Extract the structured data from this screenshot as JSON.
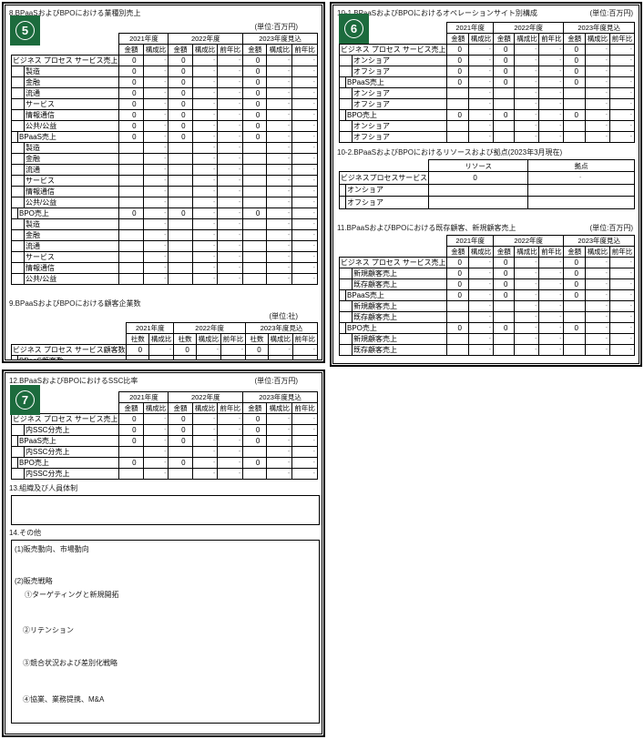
{
  "units": {
    "million_yen": "(単位:百万円)",
    "companies": "(単位:社)"
  },
  "headers": {
    "y2021": "2021年度",
    "y2022": "2022年度",
    "y2023": "2023年度見込",
    "amount": "金額",
    "share": "構成比",
    "yoy": "前年比",
    "count": "社数"
  },
  "badges": {
    "panel5": "5",
    "panel6": "6",
    "pan7": "7",
    "panel7": "7"
  },
  "panel5": {
    "section8": {
      "title": "8.BPaaSおよびBPOにおける業種別売上",
      "rows": [
        {
          "label": "ビジネス プロセス サービス売上",
          "indent": 0,
          "values": [
            "0",
            "-",
            "0",
            "-",
            "-",
            "0",
            "-",
            "-"
          ]
        },
        {
          "label": "製造",
          "indent": 2,
          "values": [
            "0",
            "-",
            "0",
            "-",
            "-",
            "0",
            "-",
            "-"
          ]
        },
        {
          "label": "金融",
          "indent": 2,
          "values": [
            "0",
            "-",
            "0",
            "-",
            "-",
            "0",
            "-",
            "-"
          ]
        },
        {
          "label": "流通",
          "indent": 2,
          "values": [
            "0",
            "-",
            "0",
            "-",
            "-",
            "0",
            "-",
            "-"
          ]
        },
        {
          "label": "サービス",
          "indent": 2,
          "values": [
            "0",
            "-",
            "0",
            "-",
            "-",
            "0",
            "-",
            "-"
          ]
        },
        {
          "label": "情報通信",
          "indent": 2,
          "values": [
            "0",
            "-",
            "0",
            "-",
            "-",
            "0",
            "-",
            "-"
          ]
        },
        {
          "label": "公共/公益",
          "indent": 2,
          "values": [
            "0",
            "-",
            "0",
            "-",
            "-",
            "0",
            "-",
            "-"
          ]
        },
        {
          "label": "BPaaS売上",
          "indent": 1,
          "values": [
            "0",
            "-",
            "0",
            "-",
            "-",
            "0",
            "-",
            "-"
          ]
        },
        {
          "label": "製造",
          "indent": 2,
          "values": [
            "",
            "-",
            "",
            "-",
            "-",
            "",
            "-",
            "-"
          ]
        },
        {
          "label": "金融",
          "indent": 2,
          "values": [
            "",
            "-",
            "",
            "-",
            "-",
            "",
            "-",
            "-"
          ]
        },
        {
          "label": "流通",
          "indent": 2,
          "values": [
            "",
            "-",
            "",
            "-",
            "-",
            "",
            "-",
            "-"
          ]
        },
        {
          "label": "サービス",
          "indent": 2,
          "values": [
            "",
            "-",
            "",
            "-",
            "-",
            "",
            "-",
            "-"
          ]
        },
        {
          "label": "情報通信",
          "indent": 2,
          "values": [
            "",
            "-",
            "",
            "-",
            "-",
            "",
            "-",
            "-"
          ]
        },
        {
          "label": "公共/公益",
          "indent": 2,
          "values": [
            "",
            "-",
            "",
            "-",
            "-",
            "",
            "-",
            "-"
          ]
        },
        {
          "label": "BPO売上",
          "indent": 1,
          "values": [
            "0",
            "-",
            "0",
            "-",
            "-",
            "0",
            "-",
            "-"
          ]
        },
        {
          "label": "製造",
          "indent": 2,
          "values": [
            "",
            "-",
            "",
            "-",
            "-",
            "",
            "-",
            "-"
          ]
        },
        {
          "label": "金融",
          "indent": 2,
          "values": [
            "",
            "-",
            "",
            "-",
            "-",
            "",
            "-",
            "-"
          ]
        },
        {
          "label": "流通",
          "indent": 2,
          "values": [
            "",
            "-",
            "",
            "-",
            "-",
            "",
            "-",
            "-"
          ]
        },
        {
          "label": "サービス",
          "indent": 2,
          "values": [
            "",
            "-",
            "",
            "-",
            "-",
            "",
            "-",
            "-"
          ]
        },
        {
          "label": "情報通信",
          "indent": 2,
          "values": [
            "",
            "-",
            "",
            "-",
            "-",
            "",
            "-",
            "-"
          ]
        },
        {
          "label": "公共/公益",
          "indent": 2,
          "values": [
            "",
            "-",
            "",
            "-",
            "-",
            "",
            "-",
            "-"
          ]
        }
      ]
    },
    "section9": {
      "title": "9.BPaaSおよびBPOにおける顧客企業数",
      "rows": [
        {
          "label": "ビジネス プロセス サービス顧客数",
          "indent": 0,
          "values": [
            "0",
            "-",
            "0",
            "-",
            "-",
            "0",
            "-",
            "-"
          ]
        },
        {
          "label": "BPaaS顧客数",
          "indent": 1,
          "values": [
            "",
            "-",
            "",
            "-",
            "-",
            "",
            "-",
            "-"
          ]
        },
        {
          "label": "BPO顧客数",
          "indent": 1,
          "values": [
            "",
            "-",
            "",
            "-",
            "-",
            "",
            "-",
            "-"
          ]
        }
      ]
    }
  },
  "panel6": {
    "section10_1": {
      "title": "10-1.BPaaSおよびBPOにおけるオペレーションサイト別構成",
      "rows": [
        {
          "label": "ビジネス プロセス サービス売上",
          "indent": 0,
          "values": [
            "0",
            "-",
            "0",
            "-",
            "-",
            "0",
            "-",
            "-"
          ]
        },
        {
          "label": "オンショア",
          "indent": 2,
          "values": [
            "0",
            "-",
            "0",
            "-",
            "-",
            "0",
            "-",
            "-"
          ]
        },
        {
          "label": "オフショア",
          "indent": 2,
          "values": [
            "0",
            "-",
            "0",
            "-",
            "-",
            "0",
            "-",
            "-"
          ]
        },
        {
          "label": "BPaaS売上",
          "indent": 1,
          "values": [
            "0",
            "-",
            "0",
            "-",
            "-",
            "0",
            "-",
            "-"
          ]
        },
        {
          "label": "オンショア",
          "indent": 2,
          "values": [
            "",
            "-",
            "",
            "-",
            "-",
            "",
            "-",
            "-"
          ]
        },
        {
          "label": "オフショア",
          "indent": 2,
          "values": [
            "",
            "-",
            "",
            "-",
            "-",
            "",
            "-",
            "-"
          ]
        },
        {
          "label": "BPO売上",
          "indent": 1,
          "values": [
            "0",
            "-",
            "0",
            "-",
            "-",
            "0",
            "-",
            "-"
          ]
        },
        {
          "label": "オンショア",
          "indent": 2,
          "values": [
            "",
            "-",
            "",
            "-",
            "-",
            "",
            "-",
            "-"
          ]
        },
        {
          "label": "オフショア",
          "indent": 2,
          "values": [
            "",
            "-",
            "",
            "-",
            "-",
            "",
            "-",
            "-"
          ]
        }
      ]
    },
    "section10_2": {
      "title": "10-2.BPaaSおよびBPOにおけるリソースおよび拠点(2023年3月現在)",
      "col_resource": "リソース",
      "col_site": "拠点",
      "rows": [
        {
          "label": "ビジネスプロセスサービス",
          "indent": 0,
          "values": [
            "0",
            "-"
          ]
        },
        {
          "label": "オンショア",
          "indent": 1,
          "values": [
            "",
            ""
          ]
        },
        {
          "label": "オフショア",
          "indent": 1,
          "values": [
            "",
            ""
          ]
        }
      ]
    },
    "section11": {
      "title": "11.BPaaSおよびBPOにおける既存顧客、新規顧客売上",
      "rows": [
        {
          "label": "ビジネス プロセス サービス売上",
          "indent": 0,
          "values": [
            "0",
            "-",
            "0",
            "-",
            "-",
            "0",
            "-",
            "-"
          ]
        },
        {
          "label": "新規顧客売上",
          "indent": 2,
          "values": [
            "0",
            "-",
            "0",
            "-",
            "-",
            "0",
            "-",
            "-"
          ]
        },
        {
          "label": "既存顧客売上",
          "indent": 2,
          "values": [
            "0",
            "-",
            "0",
            "-",
            "-",
            "0",
            "-",
            "-"
          ]
        },
        {
          "label": "BPaaS売上",
          "indent": 1,
          "values": [
            "0",
            "-",
            "0",
            "-",
            "-",
            "0",
            "-",
            "-"
          ]
        },
        {
          "label": "新規顧客売上",
          "indent": 2,
          "values": [
            "",
            "-",
            "",
            "-",
            "-",
            "",
            "-",
            "-"
          ]
        },
        {
          "label": "既存顧客売上",
          "indent": 2,
          "values": [
            "",
            "-",
            "",
            "-",
            "-",
            "",
            "-",
            "-"
          ]
        },
        {
          "label": "BPO売上",
          "indent": 1,
          "values": [
            "0",
            "-",
            "0",
            "-",
            "-",
            "0",
            "-",
            "-"
          ]
        },
        {
          "label": "新規顧客売上",
          "indent": 2,
          "values": [
            "",
            "-",
            "",
            "-",
            "-",
            "",
            "-",
            "-"
          ]
        },
        {
          "label": "既存顧客売上",
          "indent": 2,
          "values": [
            "",
            "-",
            "",
            "-",
            "-",
            "",
            "-",
            "-"
          ]
        }
      ]
    }
  },
  "panel7": {
    "section12": {
      "title": "12.BPaaSおよびBPOにおけるSSC比率",
      "rows": [
        {
          "label": "ビジネス プロセス サービス売上",
          "indent": 0,
          "values": [
            "0",
            "-",
            "0",
            "-",
            "-",
            "0",
            "-",
            "-"
          ]
        },
        {
          "label": "内SSC分売上",
          "indent": 2,
          "values": [
            "0",
            "-",
            "0",
            "-",
            "-",
            "0",
            "-",
            "-"
          ]
        },
        {
          "label": "BPaaS売上",
          "indent": 1,
          "values": [
            "0",
            "-",
            "0",
            "-",
            "-",
            "0",
            "-",
            "-"
          ]
        },
        {
          "label": "内SSC分売上",
          "indent": 2,
          "values": [
            "",
            "-",
            "",
            "-",
            "-",
            "",
            "-",
            "-"
          ]
        },
        {
          "label": "BPO売上",
          "indent": 1,
          "values": [
            "0",
            "-",
            "0",
            "-",
            "-",
            "0",
            "-",
            "-"
          ]
        },
        {
          "label": "内SSC分売上",
          "indent": 2,
          "values": [
            "",
            "-",
            "",
            "-",
            "-",
            "",
            "-",
            "-"
          ]
        }
      ]
    },
    "section13": {
      "title": "13.組織及び人員体制"
    },
    "section14": {
      "title": "14.その他",
      "items": {
        "i1": "(1)販売動向、市場動向",
        "i2": "(2)販売戦略",
        "i2a": "①ターゲティングと新規開拓",
        "i2b": "②リテンション",
        "i2c": "③競合状況および差別化戦略",
        "i2d": "④協業、業務提携、M&A"
      }
    }
  }
}
